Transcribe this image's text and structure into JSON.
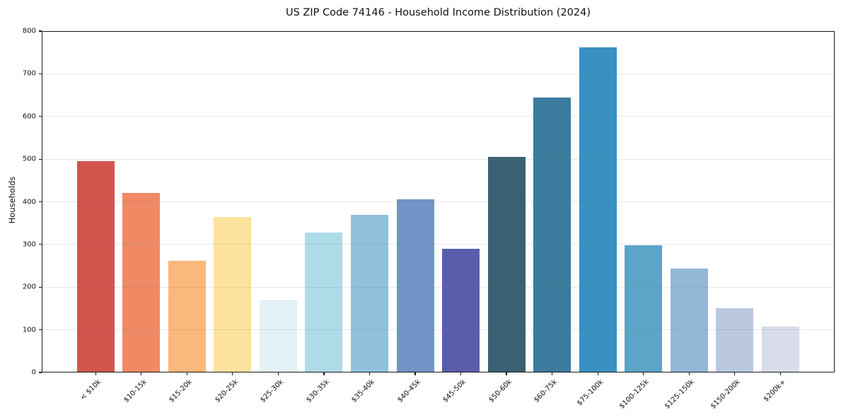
{
  "chart_data": {
    "type": "bar",
    "title": "US ZIP Code 74146 - Household Income Distribution (2024)",
    "xlabel": "",
    "ylabel": "Households",
    "ylim": [
      0,
      800
    ],
    "yticks": [
      0,
      100,
      200,
      300,
      400,
      500,
      600,
      700,
      800
    ],
    "grid": "horizontal-light-gray",
    "legend": "none",
    "x_tick_rotation_deg": 45,
    "categories": [
      "< $10k",
      "$10-15k",
      "$15-20k",
      "$20-25k",
      "$25-30k",
      "$30-35k",
      "$35-40k",
      "$40-45k",
      "$45-50k",
      "$50-60k",
      "$60-75k",
      "$75-100k",
      "$100-125k",
      "$125-150k",
      "$150-200k",
      "$200k+"
    ],
    "values": [
      496,
      420,
      261,
      364,
      171,
      328,
      369,
      405,
      290,
      506,
      644,
      762,
      298,
      244,
      151,
      108
    ],
    "bar_colors": [
      "#d3544d",
      "#f08964",
      "#fab87a",
      "#fde29e",
      "#e4f1f6",
      "#aedbe8",
      "#91c0dd",
      "#6f94c5",
      "#5a5dac",
      "#396173",
      "#3a7b9e",
      "#3990c1",
      "#5aa5c8",
      "#92b8d8",
      "#bac9e0",
      "#d9dcea"
    ]
  }
}
